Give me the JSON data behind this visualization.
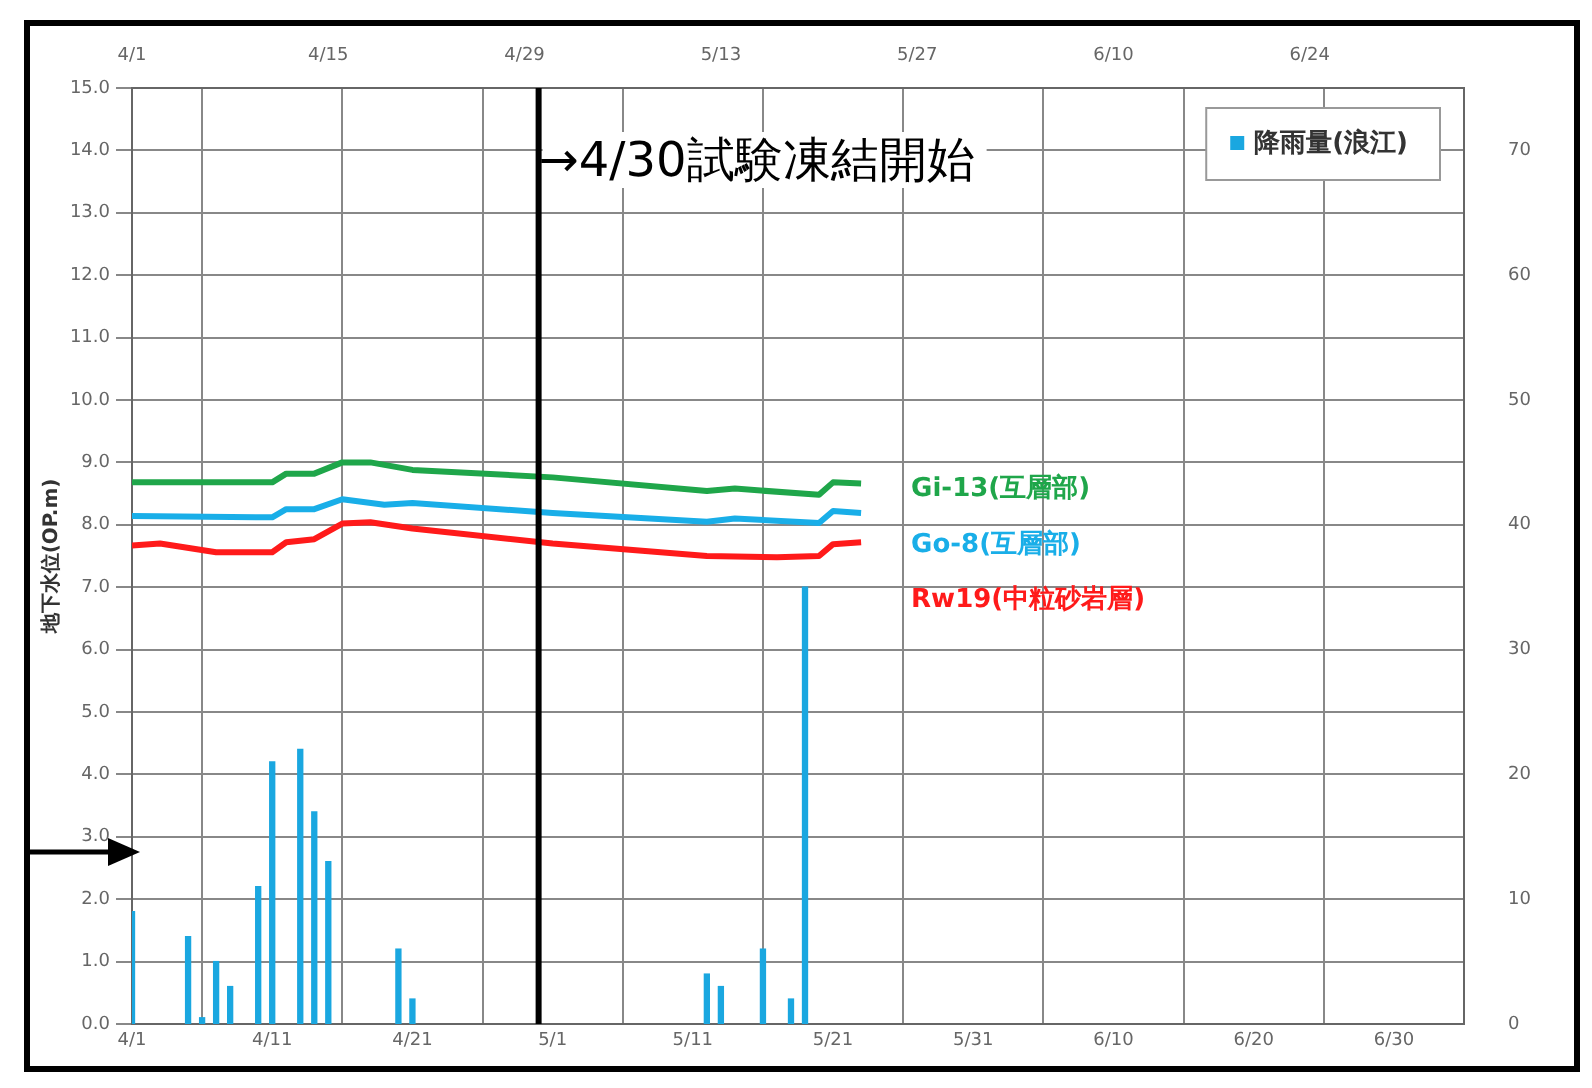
{
  "chart_data": {
    "type": "line",
    "ylabel": "地下水位(OP.m)",
    "xlim": [
      "--04-01",
      "--07-05"
    ],
    "xticks": [
      {
        "value": "--04-01",
        "label": "4/1"
      },
      {
        "value": "--04-11",
        "label": "4/11"
      },
      {
        "value": "--04-21",
        "label": "4/21"
      },
      {
        "value": "--05-01",
        "label": "5/1"
      },
      {
        "value": "--05-11",
        "label": "5/11"
      },
      {
        "value": "--05-21",
        "label": "5/21"
      },
      {
        "value": "--05-31",
        "label": "5/31"
      },
      {
        "value": "--06-10",
        "label": "6/10"
      },
      {
        "value": "--06-20",
        "label": "6/20"
      },
      {
        "value": "--06-30",
        "label": "6/30"
      }
    ],
    "x2lim": [
      "--04-01",
      "--07-05"
    ],
    "x2ticks": [
      {
        "value": "--04-01",
        "label": "4/1"
      },
      {
        "value": "--04-15",
        "label": "4/15"
      },
      {
        "value": "--04-29",
        "label": "4/29"
      },
      {
        "value": "--05-13",
        "label": "5/13"
      },
      {
        "value": "--05-27",
        "label": "5/27"
      },
      {
        "value": "--06-10",
        "label": "6/10"
      },
      {
        "value": "--06-24",
        "label": "6/24"
      }
    ],
    "ylim": [
      0,
      15
    ],
    "yticks": [
      {
        "value": 0,
        "label": "0.0"
      },
      {
        "value": 1,
        "label": "1.0"
      },
      {
        "value": 2,
        "label": "2.0"
      },
      {
        "value": 3,
        "label": "3.0"
      },
      {
        "value": 4,
        "label": "4.0"
      },
      {
        "value": 5,
        "label": "5.0"
      },
      {
        "value": 6,
        "label": "6.0"
      },
      {
        "value": 7,
        "label": "7.0"
      },
      {
        "value": 8,
        "label": "8.0"
      },
      {
        "value": 9,
        "label": "9.0"
      },
      {
        "value": 10,
        "label": "10.0"
      },
      {
        "value": 11,
        "label": "11.0"
      },
      {
        "value": 12,
        "label": "12.0"
      },
      {
        "value": 13,
        "label": "13.0"
      },
      {
        "value": 14,
        "label": "14.0"
      },
      {
        "value": 15,
        "label": "15.0"
      }
    ],
    "y2lim": [
      0,
      75
    ],
    "y2ticks": [
      0,
      10,
      20,
      30,
      40,
      50,
      60,
      70
    ],
    "grid": true,
    "legend": "top right",
    "marker": "none",
    "line_style": "solid",
    "ref_lines": [
      {
        "axis": "x",
        "value": "--04-30",
        "label": "→4/30試験凍結開始",
        "color": "#000000"
      }
    ],
    "series": [
      {
        "name": "Gi-13(互層部)",
        "color": "#1fa64a",
        "x": [
          "--04-01",
          "--04-11",
          "--04-12",
          "--04-14",
          "--04-16",
          "--04-18",
          "--04-21",
          "--05-01",
          "--05-12",
          "--05-14",
          "--05-20",
          "--05-21",
          "--05-23"
        ],
        "values": [
          8.68,
          8.68,
          8.82,
          8.82,
          9.0,
          9.0,
          8.88,
          8.76,
          8.54,
          8.58,
          8.48,
          8.68,
          8.66
        ]
      },
      {
        "name": "Go-8(互層部)",
        "color": "#19aee8",
        "x": [
          "--04-01",
          "--04-11",
          "--04-12",
          "--04-14",
          "--04-16",
          "--04-19",
          "--04-21",
          "--05-01",
          "--05-12",
          "--05-14",
          "--05-20",
          "--05-21",
          "--05-23"
        ],
        "values": [
          8.14,
          8.12,
          8.25,
          8.25,
          8.41,
          8.32,
          8.35,
          8.19,
          8.05,
          8.1,
          8.03,
          8.22,
          8.19
        ]
      },
      {
        "name": "Rw19(中粒砂岩層)",
        "color": "#ff1a1a",
        "x": [
          "--04-01",
          "--04-03",
          "--04-07",
          "--04-11",
          "--04-12",
          "--04-14",
          "--04-16",
          "--04-18",
          "--04-21",
          "--05-01",
          "--05-12",
          "--05-17",
          "--05-20",
          "--05-21",
          "--05-23"
        ],
        "values": [
          7.67,
          7.7,
          7.56,
          7.56,
          7.72,
          7.77,
          8.02,
          8.04,
          7.94,
          7.7,
          7.5,
          7.48,
          7.5,
          7.69,
          7.72
        ]
      },
      {
        "name": "降雨量(浪江)",
        "type": "bar",
        "axis": "y2",
        "color": "#1aa7e0",
        "x": [
          "--04-01",
          "--04-05",
          "--04-06",
          "--04-07",
          "--04-08",
          "--04-10",
          "--04-11",
          "--04-13",
          "--04-14",
          "--04-15",
          "--04-20",
          "--04-21",
          "--05-12",
          "--05-13",
          "--05-16",
          "--05-18",
          "--05-19"
        ],
        "values": [
          9,
          7,
          0.5,
          5,
          3,
          11,
          21,
          22,
          17,
          13,
          6,
          2,
          4,
          3,
          6,
          2,
          35
        ]
      }
    ]
  }
}
